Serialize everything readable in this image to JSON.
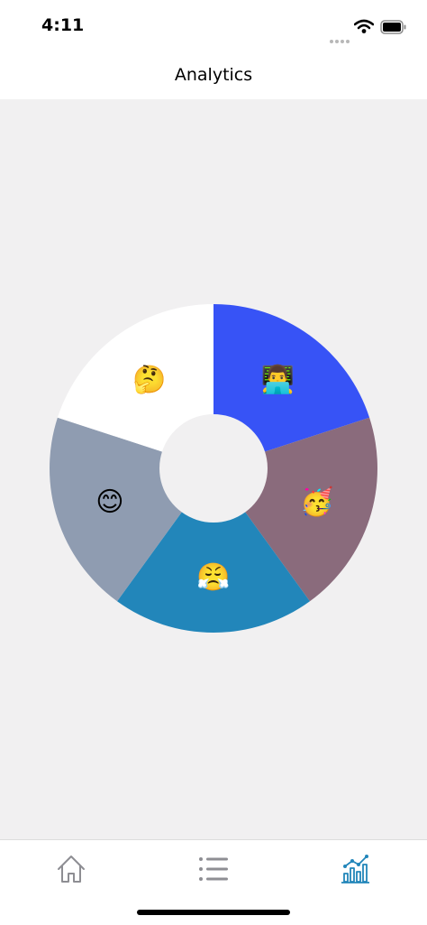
{
  "status_bar": {
    "time": "4:11",
    "icons": [
      "wifi-icon",
      "battery-icon"
    ]
  },
  "nav": {
    "title": "Analytics"
  },
  "chart_data": {
    "type": "pie",
    "donut": true,
    "slices": [
      {
        "label": "👨‍💻",
        "value": 1,
        "color": "#3753f6"
      },
      {
        "label": "🥳",
        "value": 1,
        "color": "#8a6b7c"
      },
      {
        "label": "😤",
        "value": 1,
        "color": "#2286ba"
      },
      {
        "label": "😊",
        "value": 1,
        "color": "#8f9cb1"
      },
      {
        "label": "🤔",
        "value": 1,
        "color": "#ffffff"
      }
    ],
    "title": "",
    "legend": "none"
  },
  "tabs": [
    {
      "icon": "home-icon",
      "active": false
    },
    {
      "icon": "list-icon",
      "active": false
    },
    {
      "icon": "analytics-icon",
      "active": true
    }
  ],
  "colors": {
    "accent": "#2286ba",
    "inactive_tab": "#8e8e93",
    "content_background": "#f1f0f1"
  }
}
